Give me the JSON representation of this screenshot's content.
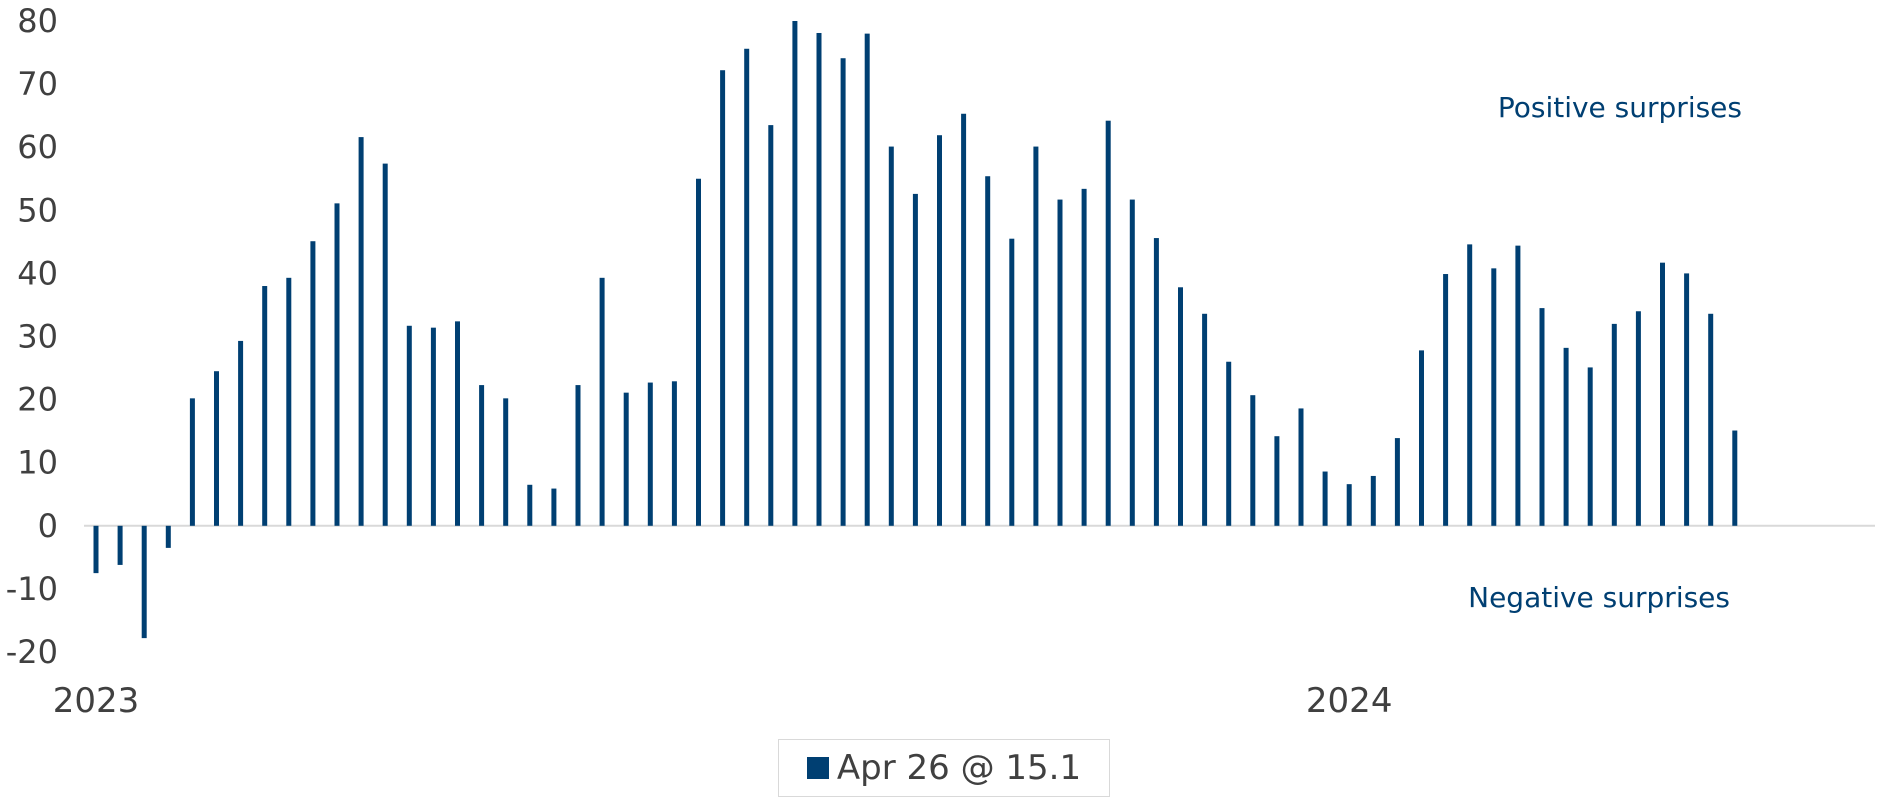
{
  "colors": {
    "series": "#003f72",
    "axis": "#d9d9d9",
    "text": "#404040"
  },
  "chart_data": {
    "type": "bar",
    "title": "",
    "xlabel": "",
    "ylabel": "",
    "ylim": [
      -20,
      80
    ],
    "y_ticks": [
      80,
      70,
      60,
      50,
      40,
      30,
      20,
      10,
      0,
      -10,
      -20
    ],
    "x_labels": [
      {
        "text": "2023",
        "index": 0
      },
      {
        "text": "2024",
        "index": 52
      }
    ],
    "annotations": [
      "Positive surprises",
      "Negative surprises"
    ],
    "legend": {
      "label": "Apr 26 @ 15.1",
      "placement": "bottom-center"
    },
    "grid": false,
    "series": [
      {
        "values": [
          -7.5,
          -6.2,
          -17.8,
          -3.5,
          20.2,
          24.5,
          29.3,
          38.0,
          39.3,
          45.1,
          51.1,
          61.6,
          57.4,
          31.7,
          31.4,
          32.4,
          22.3,
          20.2,
          6.5,
          5.9,
          22.3,
          39.3,
          21.1,
          22.7,
          22.9,
          55.0,
          72.2,
          75.6,
          63.5,
          80.0,
          78.1,
          74.1,
          78.0,
          60.1,
          52.6,
          61.9,
          65.3,
          55.4,
          45.5,
          60.1,
          51.7,
          53.4,
          64.2,
          51.7,
          45.6,
          37.8,
          33.6,
          26.0,
          20.7,
          14.2,
          18.6,
          8.6,
          6.6,
          7.9,
          13.9,
          27.8,
          39.9,
          44.6,
          40.8,
          44.4,
          34.5,
          28.2,
          25.1,
          32.0,
          34.0,
          41.7,
          40.0,
          33.6,
          15.1
        ]
      }
    ]
  }
}
